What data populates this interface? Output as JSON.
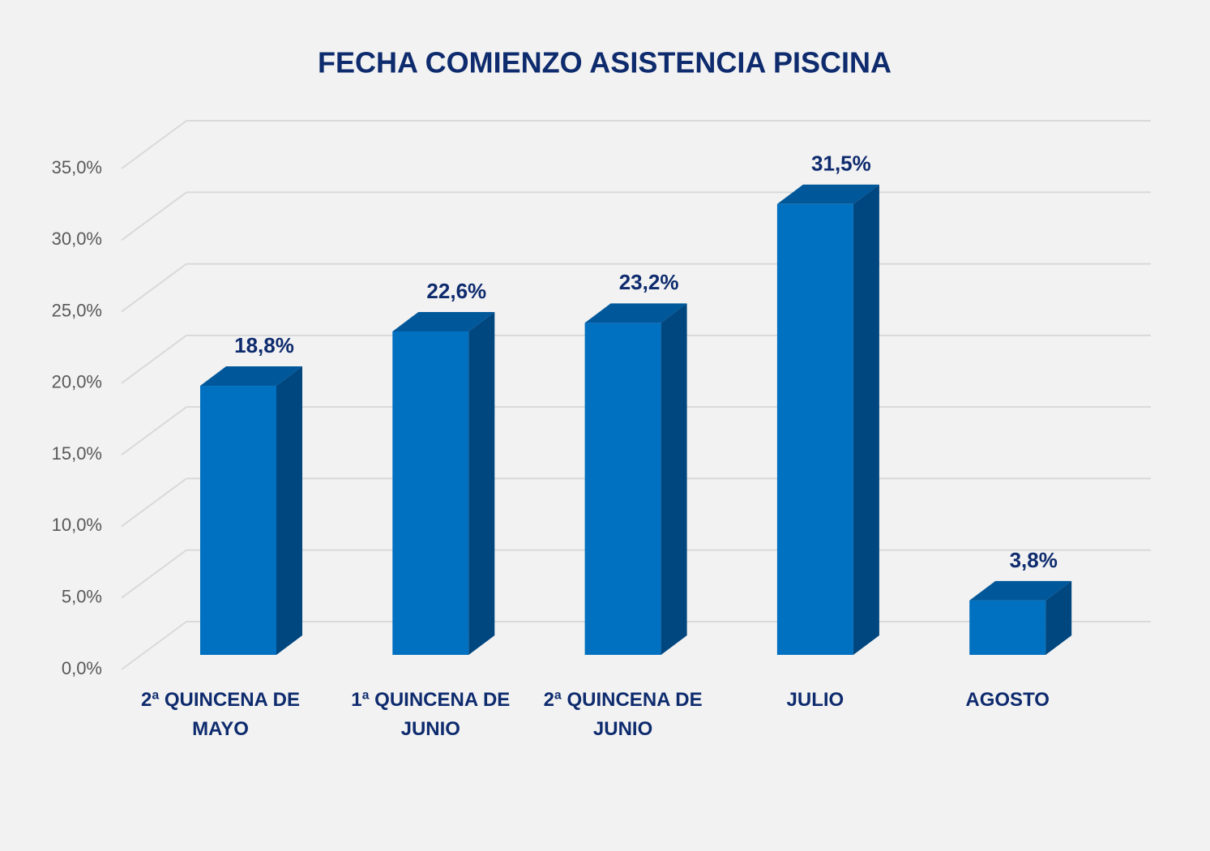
{
  "chart_data": {
    "type": "bar3d",
    "title": "FECHA COMIENZO ASISTENCIA PISCINA",
    "categories": [
      "2ª QUINCENA DE MAYO",
      "1ª QUINCENA DE JUNIO",
      "2ª QUINCENA DE JUNIO",
      "JULIO",
      "AGOSTO"
    ],
    "values": [
      18.8,
      22.6,
      23.2,
      31.5,
      3.8
    ],
    "value_labels": [
      "18,8%",
      "22,6%",
      "23,2%",
      "31,5%",
      "3,8%"
    ],
    "color": "#0070c0",
    "ylim": [
      0,
      35
    ],
    "yticks": [
      {
        "value": 0,
        "label": "0,0%"
      },
      {
        "value": 5,
        "label": "5,0%"
      },
      {
        "value": 10,
        "label": "10,0%"
      },
      {
        "value": 15,
        "label": "15,0%"
      },
      {
        "value": 20,
        "label": "20,0%"
      },
      {
        "value": 25,
        "label": "25,0%"
      },
      {
        "value": 30,
        "label": "30,0%"
      },
      {
        "value": 35,
        "label": "35,0%"
      }
    ],
    "grid": true
  }
}
